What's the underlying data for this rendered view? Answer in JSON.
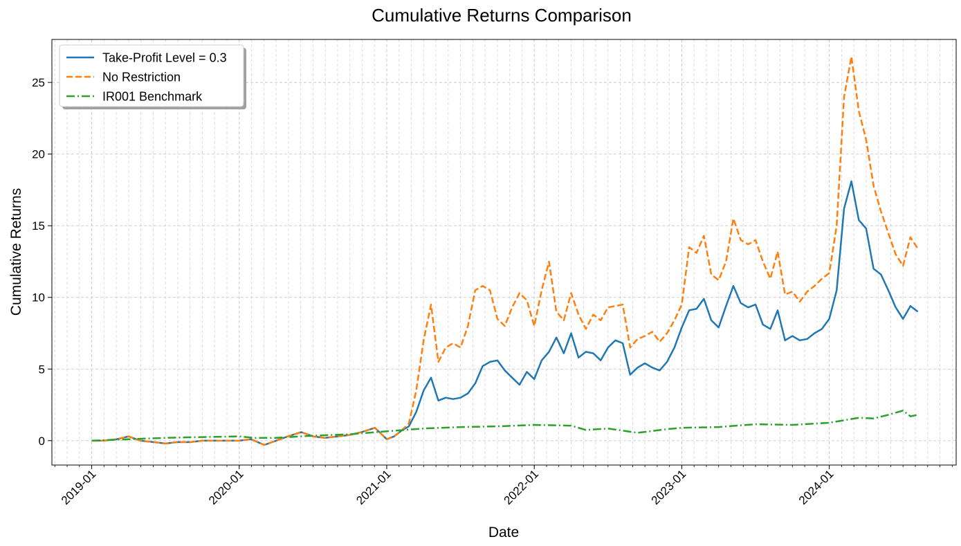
{
  "chart_data": {
    "type": "line",
    "title": "Cumulative Returns Comparison",
    "xlabel": "Date",
    "ylabel": "Cumulative Returns",
    "xlim": [
      2018.73,
      2024.86
    ],
    "ylim": [
      -1.7,
      28.0
    ],
    "grid": true,
    "legend_position": "upper-left",
    "x_ticks": [
      {
        "label": "2019-01",
        "value": 2019.0
      },
      {
        "label": "2020-01",
        "value": 2020.0
      },
      {
        "label": "2021-01",
        "value": 2021.0
      },
      {
        "label": "2022-01",
        "value": 2022.0
      },
      {
        "label": "2023-01",
        "value": 2023.0
      },
      {
        "label": "2024-01",
        "value": 2024.0
      }
    ],
    "y_ticks": [
      0,
      5,
      10,
      15,
      20,
      25
    ],
    "series": [
      {
        "name": "Take-Profit Level = 0.3",
        "color": "#1f77b4",
        "style": "solid",
        "x": [
          2019.0,
          2019.08,
          2019.17,
          2019.25,
          2019.33,
          2019.42,
          2019.5,
          2019.58,
          2019.67,
          2019.75,
          2019.83,
          2019.92,
          2020.0,
          2020.08,
          2020.17,
          2020.25,
          2020.33,
          2020.42,
          2020.5,
          2020.58,
          2020.67,
          2020.75,
          2020.83,
          2020.92,
          2021.0,
          2021.05,
          2021.1,
          2021.15,
          2021.2,
          2021.25,
          2021.3,
          2021.35,
          2021.4,
          2021.45,
          2021.5,
          2021.55,
          2021.6,
          2021.65,
          2021.7,
          2021.75,
          2021.8,
          2021.85,
          2021.9,
          2021.95,
          2022.0,
          2022.05,
          2022.1,
          2022.15,
          2022.2,
          2022.25,
          2022.3,
          2022.35,
          2022.4,
          2022.45,
          2022.5,
          2022.55,
          2022.6,
          2022.65,
          2022.7,
          2022.75,
          2022.8,
          2022.85,
          2022.9,
          2022.95,
          2023.0,
          2023.05,
          2023.1,
          2023.15,
          2023.2,
          2023.25,
          2023.3,
          2023.35,
          2023.4,
          2023.45,
          2023.5,
          2023.55,
          2023.6,
          2023.65,
          2023.7,
          2023.75,
          2023.8,
          2023.85,
          2023.9,
          2023.95,
          2024.0,
          2024.05,
          2024.1,
          2024.15,
          2024.2,
          2024.25,
          2024.3,
          2024.35,
          2024.4,
          2024.45,
          2024.5,
          2024.55,
          2024.6
        ],
        "y": [
          0.0,
          0.0,
          0.1,
          0.3,
          0.0,
          -0.1,
          -0.2,
          -0.1,
          -0.1,
          0.0,
          0.0,
          0.0,
          0.0,
          0.1,
          -0.3,
          0.0,
          0.3,
          0.6,
          0.3,
          0.2,
          0.3,
          0.4,
          0.6,
          0.9,
          0.1,
          0.3,
          0.7,
          1.0,
          2.0,
          3.5,
          4.4,
          2.8,
          3.0,
          2.9,
          3.0,
          3.3,
          4.0,
          5.2,
          5.5,
          5.6,
          4.9,
          4.4,
          3.9,
          4.8,
          4.3,
          5.6,
          6.2,
          7.2,
          6.1,
          7.5,
          5.8,
          6.2,
          6.1,
          5.6,
          6.5,
          7.0,
          6.8,
          4.6,
          5.1,
          5.4,
          5.1,
          4.9,
          5.5,
          6.5,
          7.9,
          9.1,
          9.2,
          9.9,
          8.4,
          7.9,
          9.4,
          10.8,
          9.6,
          9.3,
          9.5,
          8.1,
          7.8,
          9.1,
          7.0,
          7.3,
          7.0,
          7.1,
          7.5,
          7.8,
          8.5,
          10.5,
          16.2,
          18.1,
          15.4,
          14.8,
          12.0,
          11.6,
          10.5,
          9.3,
          8.5,
          9.4,
          9.0
        ]
      },
      {
        "name": "No Restriction",
        "color": "#ff7f0e",
        "style": "dashed",
        "x": [
          2019.0,
          2019.08,
          2019.17,
          2019.25,
          2019.33,
          2019.42,
          2019.5,
          2019.58,
          2019.67,
          2019.75,
          2019.83,
          2019.92,
          2020.0,
          2020.08,
          2020.17,
          2020.25,
          2020.33,
          2020.42,
          2020.5,
          2020.58,
          2020.67,
          2020.75,
          2020.83,
          2020.92,
          2021.0,
          2021.05,
          2021.1,
          2021.15,
          2021.2,
          2021.25,
          2021.3,
          2021.35,
          2021.4,
          2021.45,
          2021.5,
          2021.55,
          2021.6,
          2021.65,
          2021.7,
          2021.75,
          2021.8,
          2021.85,
          2021.9,
          2021.95,
          2022.0,
          2022.05,
          2022.1,
          2022.15,
          2022.2,
          2022.25,
          2022.3,
          2022.35,
          2022.4,
          2022.45,
          2022.5,
          2022.55,
          2022.6,
          2022.65,
          2022.7,
          2022.75,
          2022.8,
          2022.85,
          2022.9,
          2022.95,
          2023.0,
          2023.05,
          2023.1,
          2023.15,
          2023.2,
          2023.25,
          2023.3,
          2023.35,
          2023.4,
          2023.45,
          2023.5,
          2023.55,
          2023.6,
          2023.65,
          2023.7,
          2023.75,
          2023.8,
          2023.85,
          2023.9,
          2023.95,
          2024.0,
          2024.05,
          2024.1,
          2024.15,
          2024.2,
          2024.25,
          2024.3,
          2024.35,
          2024.4,
          2024.45,
          2024.5,
          2024.55,
          2024.6
        ],
        "y": [
          0.0,
          0.0,
          0.1,
          0.3,
          0.0,
          -0.1,
          -0.2,
          -0.1,
          -0.1,
          0.0,
          0.0,
          0.0,
          0.0,
          0.1,
          -0.3,
          0.0,
          0.3,
          0.6,
          0.3,
          0.2,
          0.3,
          0.4,
          0.6,
          0.9,
          0.1,
          0.3,
          0.7,
          1.2,
          3.5,
          7.0,
          9.5,
          5.5,
          6.5,
          6.8,
          6.5,
          8.0,
          10.5,
          10.8,
          10.5,
          8.5,
          8.0,
          9.3,
          10.3,
          9.8,
          8.0,
          10.5,
          12.5,
          9.0,
          8.4,
          10.3,
          8.8,
          7.8,
          8.8,
          8.4,
          9.3,
          9.4,
          9.5,
          6.5,
          7.1,
          7.3,
          7.6,
          6.9,
          7.5,
          8.4,
          9.5,
          13.5,
          13.1,
          14.3,
          11.6,
          11.2,
          12.5,
          15.5,
          14.0,
          13.7,
          14.0,
          12.5,
          11.3,
          13.2,
          10.2,
          10.4,
          9.7,
          10.4,
          10.8,
          11.3,
          11.7,
          15.0,
          24.0,
          26.8,
          23.0,
          21.0,
          17.8,
          16.0,
          14.5,
          13.0,
          12.2,
          14.2,
          13.4
        ]
      },
      {
        "name": "IR001 Benchmark",
        "color": "#2ca02c",
        "style": "dashdot",
        "x": [
          2019.0,
          2019.25,
          2019.5,
          2019.75,
          2020.0,
          2020.1,
          2020.25,
          2020.5,
          2020.75,
          2021.0,
          2021.25,
          2021.5,
          2021.75,
          2022.0,
          2022.25,
          2022.35,
          2022.5,
          2022.7,
          2022.9,
          2023.0,
          2023.25,
          2023.5,
          2023.75,
          2024.0,
          2024.2,
          2024.3,
          2024.4,
          2024.5,
          2024.55,
          2024.6
        ],
        "y": [
          0.0,
          0.1,
          0.2,
          0.25,
          0.3,
          0.2,
          0.2,
          0.35,
          0.45,
          0.65,
          0.85,
          0.95,
          1.0,
          1.1,
          1.05,
          0.75,
          0.85,
          0.55,
          0.8,
          0.9,
          0.95,
          1.15,
          1.1,
          1.25,
          1.6,
          1.55,
          1.8,
          2.1,
          1.7,
          1.8
        ]
      }
    ]
  }
}
